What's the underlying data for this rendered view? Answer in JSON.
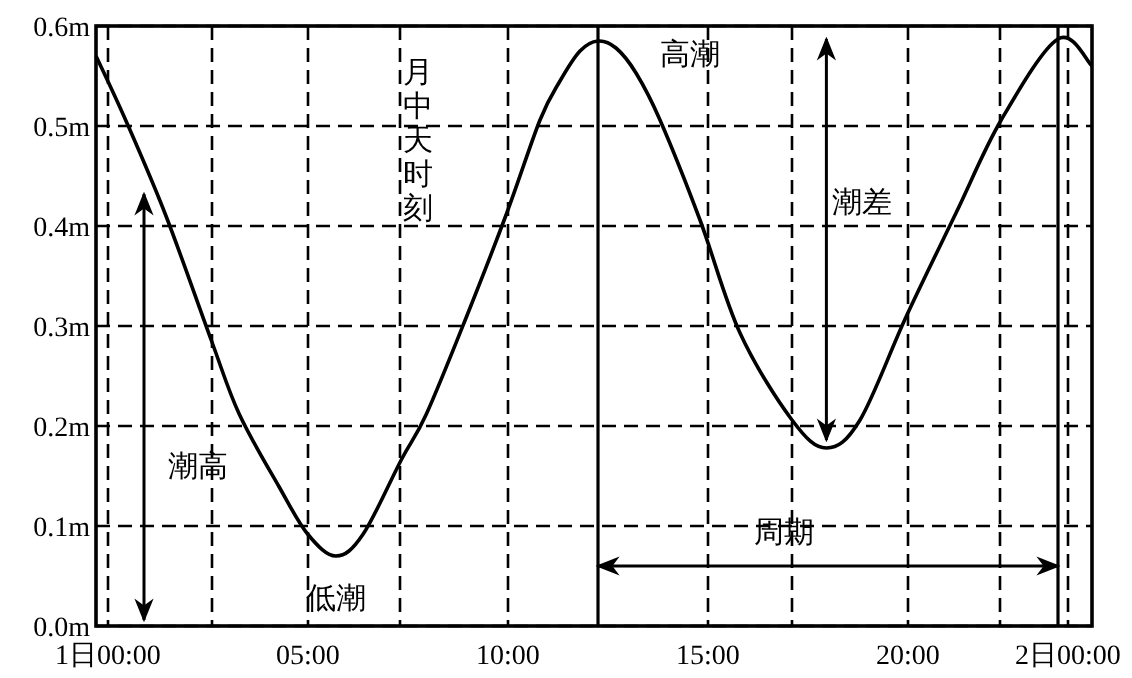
{
  "chart_data": {
    "type": "line",
    "x": [
      -0.3,
      0.44,
      1.45,
      2.58,
      3.28,
      4.28,
      4.99,
      5.7,
      6.38,
      7.33,
      7.96,
      8.96,
      9.97,
      10.8,
      11.3,
      11.8,
      12.25,
      12.7,
      13.2,
      13.8,
      14.8,
      15.8,
      17.1,
      17.96,
      18.8,
      19.95,
      21.2,
      22.33,
      23.75,
      24.6
    ],
    "series": [
      {
        "color": "#000000",
        "values": [
          0.57,
          0.506,
          0.41,
          0.286,
          0.212,
          0.139,
          0.092,
          0.07,
          0.092,
          0.166,
          0.212,
          0.309,
          0.413,
          0.506,
          0.545,
          0.575,
          0.585,
          0.578,
          0.553,
          0.506,
          0.406,
          0.293,
          0.206,
          0.178,
          0.206,
          0.309,
          0.413,
          0.506,
          0.587,
          0.56
        ]
      }
    ],
    "xlim": [
      -0.3,
      24.6
    ],
    "ylim": [
      0,
      0.6
    ],
    "xticks": [
      {
        "value": 0,
        "label": "1日00:00"
      },
      {
        "value": 2.6,
        "label": null
      },
      {
        "value": 5,
        "label": "05:00"
      },
      {
        "value": 7.3,
        "label": null
      },
      {
        "value": 10,
        "label": "10:00"
      },
      {
        "value": 15,
        "label": "15:00"
      },
      {
        "value": 17.1,
        "label": null
      },
      {
        "value": 20,
        "label": "20:00"
      },
      {
        "value": 22.3,
        "label": null
      },
      {
        "value": 24,
        "label": "2日00:00"
      }
    ],
    "yticks": [
      {
        "value": 0,
        "label": "0.0m"
      },
      {
        "value": 0.1,
        "label": "0.1m"
      },
      {
        "value": 0.2,
        "label": "0.2m"
      },
      {
        "value": 0.3,
        "label": "0.3m"
      },
      {
        "value": 0.4,
        "label": "0.4m"
      },
      {
        "value": 0.5,
        "label": "0.5m"
      },
      {
        "value": 0.6,
        "label": "0.6m"
      }
    ],
    "grid": true,
    "line_style": "solid",
    "marker": "none",
    "ref_lines": [
      {
        "axis": "x",
        "value": 12.25,
        "label": "月中天时刻"
      },
      {
        "axis": "x",
        "value": 23.75
      }
    ],
    "annotations": [
      "潮高",
      "潮差",
      "周期",
      {
        "text": "低潮",
        "x": 5.7,
        "y": 0.07
      },
      {
        "text": "高潮",
        "x": 12.25,
        "y": 0.59
      }
    ]
  }
}
